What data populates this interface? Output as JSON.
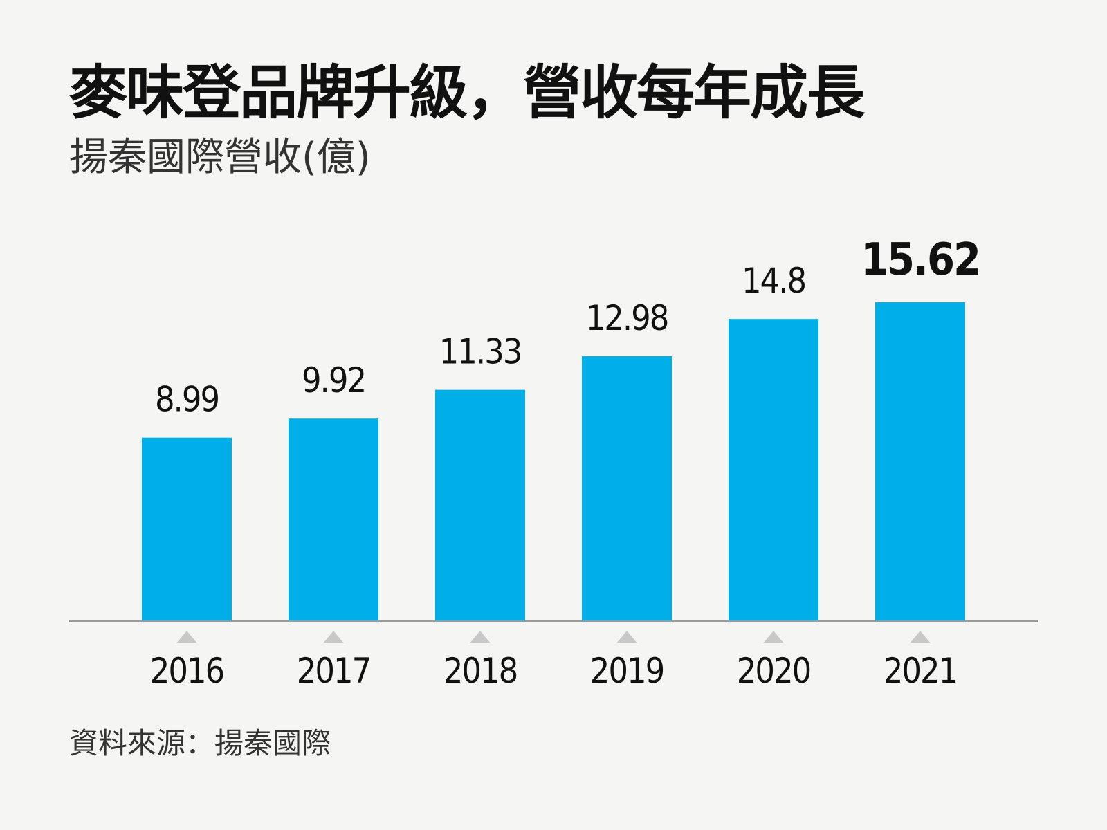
{
  "title": "麥味登品牌升級，營收每年成長",
  "subtitle": "揚秦國際營收(億)",
  "source": "資料來源：揚秦國際",
  "colors": {
    "bar": "#00aee8",
    "axis": "#9a9a9a",
    "marker": "#c8c8c8",
    "text": "#111111"
  },
  "chart_data": {
    "type": "bar",
    "categories": [
      "2016",
      "2017",
      "2018",
      "2019",
      "2020",
      "2021"
    ],
    "values": [
      8.99,
      9.92,
      11.33,
      12.98,
      14.8,
      15.62
    ],
    "value_labels": [
      "8.99",
      "9.92",
      "11.33",
      "12.98",
      "14.8",
      "15.62"
    ],
    "highlight_index": 5,
    "ylim": [
      0,
      15.62
    ],
    "grid": false,
    "legend": "none"
  }
}
